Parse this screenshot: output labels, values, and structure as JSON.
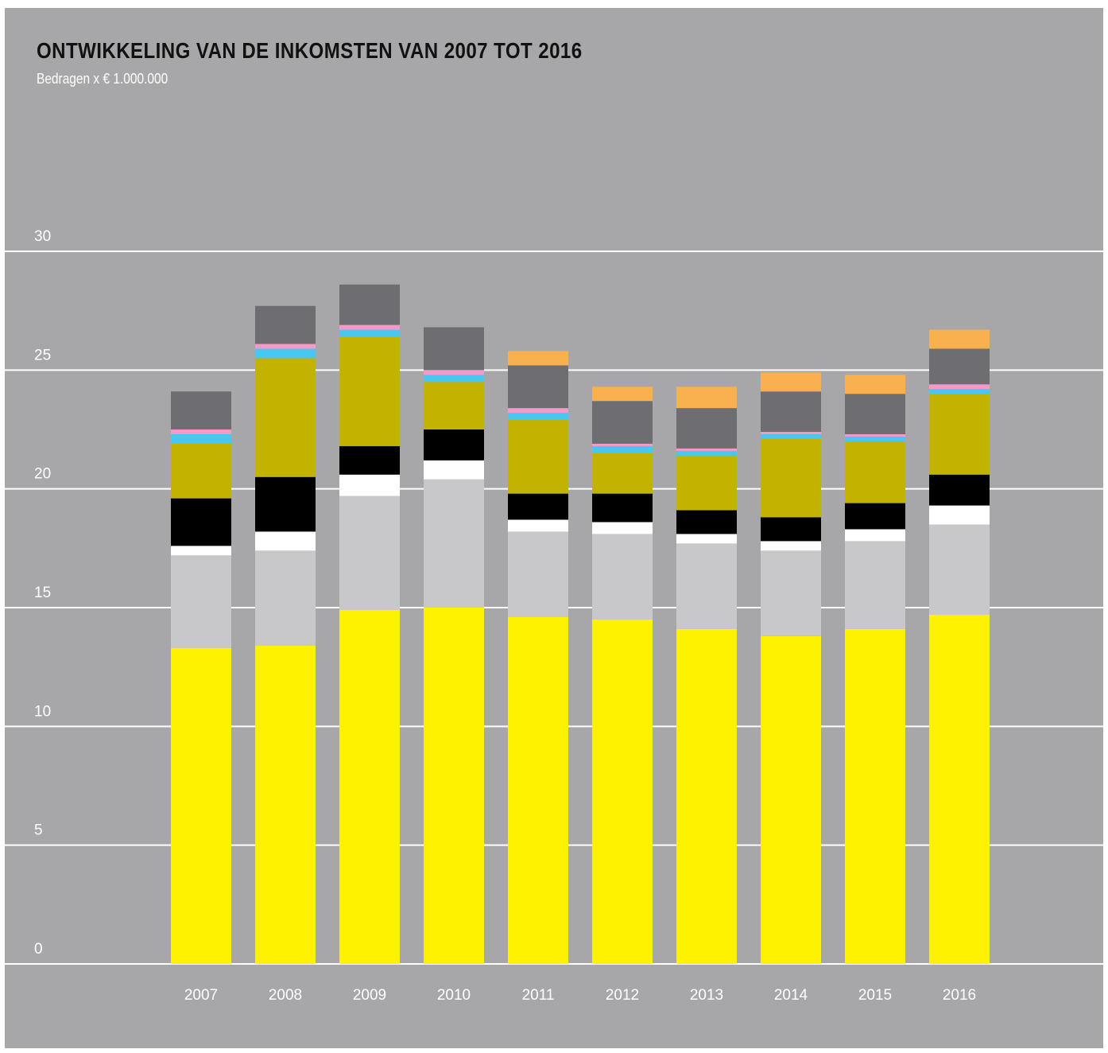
{
  "chart_data": {
    "type": "bar",
    "stacked": true,
    "title": "ONTWIKKELING VAN DE INKOMSTEN VAN 2007 TOT 2016",
    "subtitle": "Bedragen x € 1.000.000",
    "xlabel": "",
    "ylabel": "",
    "ylim": [
      0,
      30
    ],
    "y_ticks": [
      "0",
      "5",
      "10",
      "15",
      "20",
      "25",
      "30"
    ],
    "grid": true,
    "legend": "none",
    "categories": [
      "2007",
      "2008",
      "2009",
      "2010",
      "2011",
      "2012",
      "2013",
      "2014",
      "2015",
      "2016"
    ],
    "series": [
      {
        "color": "#fff200",
        "values": [
          13.3,
          13.4,
          14.9,
          15.0,
          14.6,
          14.5,
          14.1,
          13.8,
          14.1,
          14.7
        ]
      },
      {
        "color": "#c8c8ca",
        "values": [
          3.9,
          4.0,
          4.8,
          5.4,
          3.6,
          3.6,
          3.6,
          3.6,
          3.7,
          3.8
        ]
      },
      {
        "color": "#ffffff",
        "values": [
          0.4,
          0.8,
          0.9,
          0.8,
          0.5,
          0.5,
          0.4,
          0.4,
          0.5,
          0.8
        ]
      },
      {
        "color": "#000000",
        "values": [
          2.0,
          2.3,
          1.2,
          1.3,
          1.1,
          1.2,
          1.0,
          1.0,
          1.1,
          1.3
        ]
      },
      {
        "color": "#c2b300",
        "values": [
          2.3,
          5.0,
          4.6,
          2.0,
          3.1,
          1.7,
          2.3,
          3.3,
          2.6,
          3.4
        ]
      },
      {
        "color": "#48c8f0",
        "values": [
          0.4,
          0.4,
          0.3,
          0.3,
          0.3,
          0.3,
          0.2,
          0.2,
          0.2,
          0.2
        ]
      },
      {
        "color": "#f59ac8",
        "values": [
          0.2,
          0.2,
          0.2,
          0.2,
          0.2,
          0.1,
          0.1,
          0.1,
          0.1,
          0.2
        ]
      },
      {
        "color": "#6e6e72",
        "values": [
          1.6,
          1.6,
          1.7,
          1.8,
          1.8,
          1.8,
          1.7,
          1.7,
          1.7,
          1.5
        ]
      },
      {
        "color": "#f9b04f",
        "values": [
          0.0,
          0.0,
          0.0,
          0.0,
          0.6,
          0.6,
          0.9,
          0.8,
          0.8,
          0.8
        ]
      }
    ]
  }
}
